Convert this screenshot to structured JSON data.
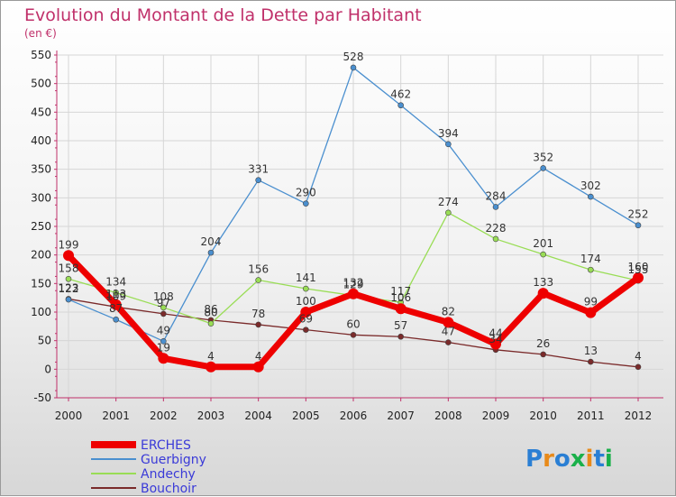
{
  "chart_data": {
    "type": "line",
    "title": "Evolution du Montant de la Dette par Habitant",
    "subtitle": "(en €)",
    "xlabel": "",
    "ylabel": "",
    "ylim": [
      -50,
      550
    ],
    "yticks": [
      -50,
      0,
      50,
      100,
      150,
      200,
      250,
      300,
      350,
      400,
      450,
      500,
      550
    ],
    "x": [
      "2000",
      "2001",
      "2002",
      "2003",
      "2004",
      "2005",
      "2006",
      "2007",
      "2008",
      "2009",
      "2010",
      "2011",
      "2012"
    ],
    "grid": true,
    "legend_position": "bottom-left",
    "series": [
      {
        "name": "ERCHES",
        "color": "#ee0000",
        "values": [
          199,
          113,
          19,
          4,
          4,
          100,
          132,
          106,
          82,
          44,
          133,
          99,
          160
        ]
      },
      {
        "name": "Guerbigny",
        "color": "#4a8fcf",
        "values": [
          122,
          87,
          49,
          204,
          331,
          290,
          528,
          462,
          394,
          284,
          352,
          302,
          252
        ]
      },
      {
        "name": "Andechy",
        "color": "#99dd55",
        "values": [
          158,
          134,
          108,
          80,
          156,
          141,
          129,
          117,
          274,
          228,
          201,
          174,
          155
        ]
      },
      {
        "name": "Bouchoir",
        "color": "#7a2a2a",
        "values": [
          123,
          109,
          97,
          86,
          78,
          69,
          60,
          57,
          47,
          34,
          26,
          13,
          4
        ]
      }
    ]
  },
  "logo": {
    "text": "Proxiti"
  }
}
